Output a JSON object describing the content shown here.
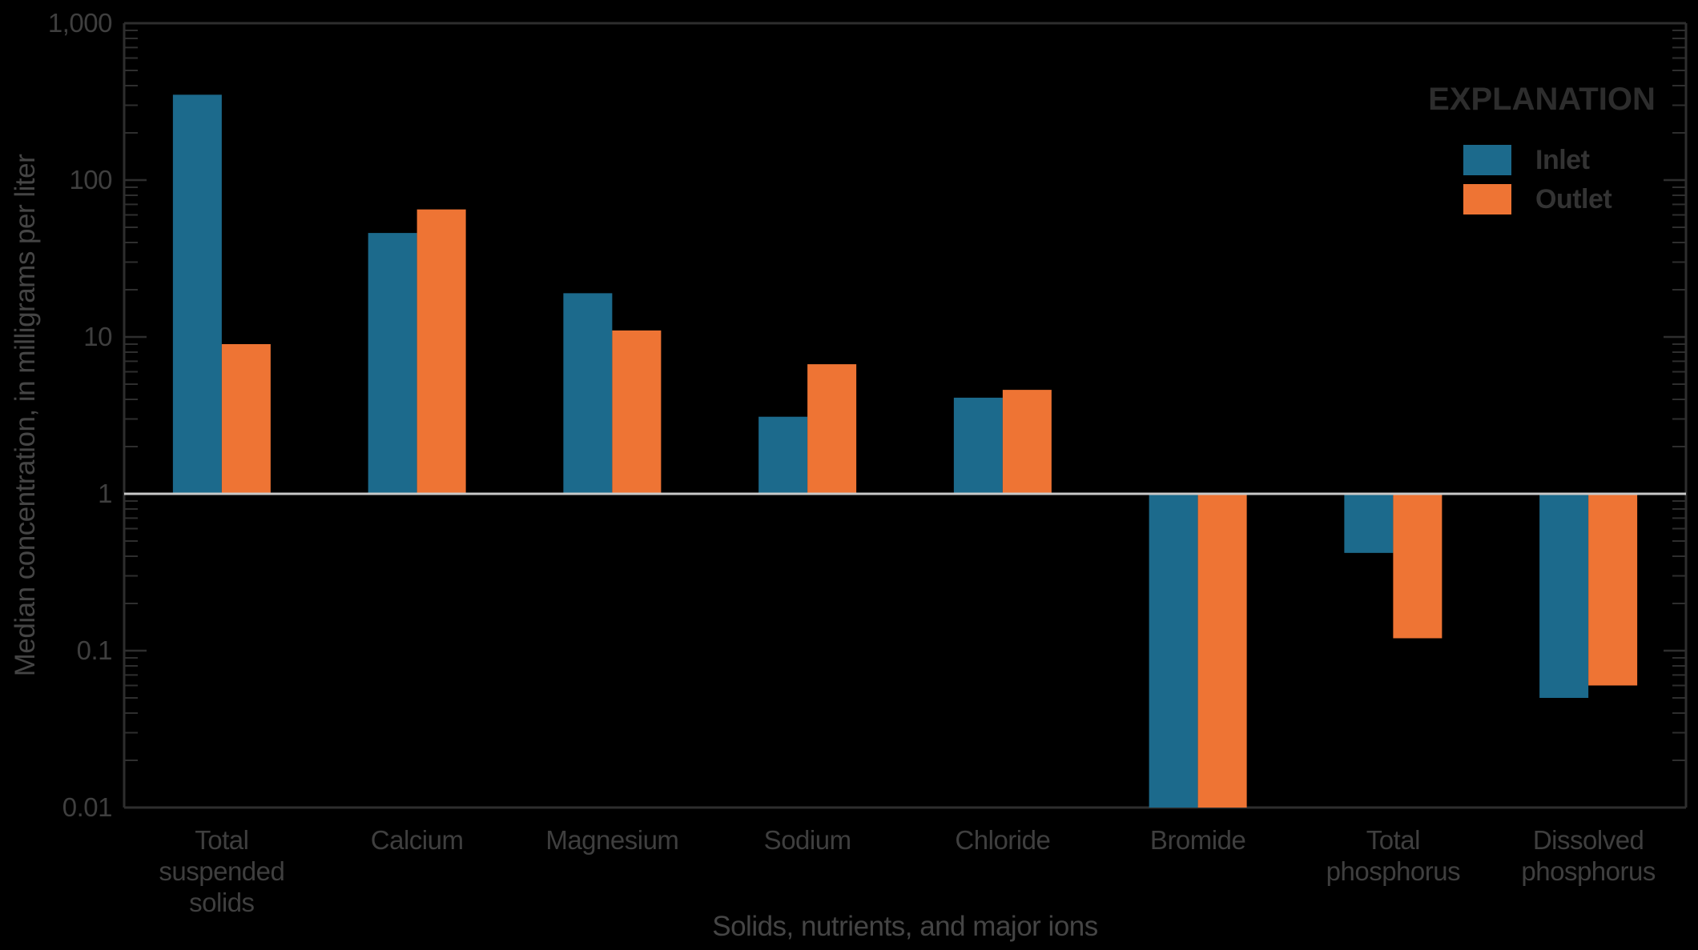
{
  "figure": {
    "background_color": "#000000",
    "axis_line_color": "#2e2e2e",
    "baseline_color": "#c9c9c9",
    "text_color": "#3f3f3f"
  },
  "legend": {
    "title": "EXPLANATION",
    "items": [
      {
        "label": "Inlet",
        "color": "#1c6a8c"
      },
      {
        "label": "Outlet",
        "color": "#ee7434"
      }
    ]
  },
  "y_axis": {
    "title": "Median concentration, in milligrams per liter",
    "scale": "log",
    "tick_labels": [
      "1,000",
      "100",
      "10",
      "1",
      "0.1",
      "0.01"
    ],
    "tick_values": [
      1000,
      100,
      10,
      1,
      0.1,
      0.01
    ]
  },
  "x_axis": {
    "title": "Solids, nutrients, and major ions"
  },
  "chart_data": {
    "type": "bar",
    "title": "",
    "xlabel": "Solids, nutrients, and major ions",
    "ylabel": "Median concentration, in milligrams per liter",
    "yscale": "log",
    "ylim": [
      0.01,
      1000
    ],
    "baseline": 1,
    "grid": "baseline-only",
    "legend_position": "upper right",
    "categories": [
      "Total suspended solids",
      "Calcium",
      "Magnesium",
      "Sodium",
      "Chloride",
      "Bromide",
      "Total phosphorus",
      "Dissolved phosphorus"
    ],
    "category_label_lines": [
      [
        "Total",
        "suspended",
        "solids"
      ],
      [
        "Calcium"
      ],
      [
        "Magnesium"
      ],
      [
        "Sodium"
      ],
      [
        "Chloride"
      ],
      [
        "Bromide"
      ],
      [
        "Total",
        "phosphorus"
      ],
      [
        "Dissolved",
        "phosphorus"
      ]
    ],
    "series": [
      {
        "name": "Inlet",
        "color": "#1c6a8c",
        "values": [
          350,
          46,
          19,
          3.1,
          4.1,
          0.01,
          0.42,
          0.05
        ]
      },
      {
        "name": "Outlet",
        "color": "#ee7434",
        "values": [
          9,
          65,
          11,
          6.7,
          4.6,
          0.01,
          0.12,
          0.06
        ]
      }
    ]
  }
}
